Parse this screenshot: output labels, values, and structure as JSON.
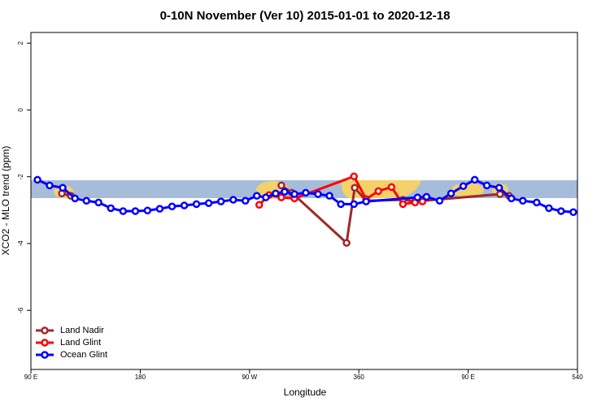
{
  "chart_data": {
    "type": "line",
    "title": "0-10N November (Ver 10)   2015-01-01 to 2020-12-18",
    "x_label": "Longitude",
    "y_label": "XCO2 - MLO trend (ppm)",
    "xlim": [
      90,
      540
    ],
    "ylim": [
      -7.77,
      2.32
    ],
    "xticks": [
      {
        "value": 90,
        "label": "90 E"
      },
      180,
      {
        "value": 270,
        "label": "90 W"
      },
      360,
      {
        "value": 450,
        "label": "90 E"
      },
      540
    ],
    "yticks": [
      2,
      0,
      -2,
      -4,
      -6
    ],
    "legend_position": "bottom-left",
    "series": [
      {
        "name": "Land Nadir",
        "color": "#a0282a",
        "x": [
          115.5,
          122.9,
          286.8,
          296.2,
          304.9,
          349.9,
          356.6,
          366.0,
          396.3,
          406.3,
          476.2,
          483.6
        ],
        "values": [
          -2.5,
          -2.57,
          null,
          -2.26,
          -2.48,
          -3.98,
          -2.33,
          -2.72,
          -2.69,
          -2.74,
          -2.52,
          -2.57
        ]
      },
      {
        "name": "Land Glint",
        "color": "#ff0000",
        "x": [
          278.0,
          286.1,
          296.2,
          307.0,
          356.0,
          366.0,
          376.1,
          386.9,
          396.3,
          406.3,
          412.4
        ],
        "values": [
          -2.84,
          -2.55,
          -2.62,
          -2.65,
          -1.99,
          -2.67,
          -2.43,
          -2.31,
          -2.82,
          -2.77,
          -2.74
        ]
      },
      {
        "name": "Ocean Glint",
        "color": "#0000ff",
        "x": [
          95.4,
          105.4,
          116.2,
          126.3,
          135.7,
          145.7,
          155.8,
          165.9,
          176.0,
          186.0,
          196.1,
          206.2,
          216.3,
          226.3,
          236.4,
          246.5,
          256.6,
          266.6,
          276.0,
          283.4,
          291.5,
          298.9,
          307.0,
          316.3,
          326.4,
          335.8,
          345.2,
          356.0,
          366.0,
          408.3,
          415.7,
          426.5,
          435.9,
          446.0,
          455.4,
          465.4,
          475.5,
          485.6,
          495.0,
          506.4,
          516.5,
          526.5,
          536.6
        ],
        "values": [
          -2.09,
          -2.26,
          -2.33,
          -2.65,
          -2.72,
          -2.77,
          -2.94,
          -3.03,
          -3.03,
          -3.01,
          -2.96,
          -2.89,
          -2.86,
          -2.82,
          -2.79,
          -2.74,
          -2.69,
          -2.72,
          -2.57,
          -2.62,
          -2.5,
          -2.45,
          -2.52,
          -2.48,
          -2.52,
          -2.57,
          -2.82,
          -2.82,
          -2.74,
          -2.62,
          -2.6,
          -2.72,
          -2.5,
          -2.28,
          -2.09,
          -2.26,
          -2.33,
          -2.65,
          -2.72,
          -2.77,
          -2.94,
          -3.03,
          -3.06
        ]
      }
    ]
  }
}
